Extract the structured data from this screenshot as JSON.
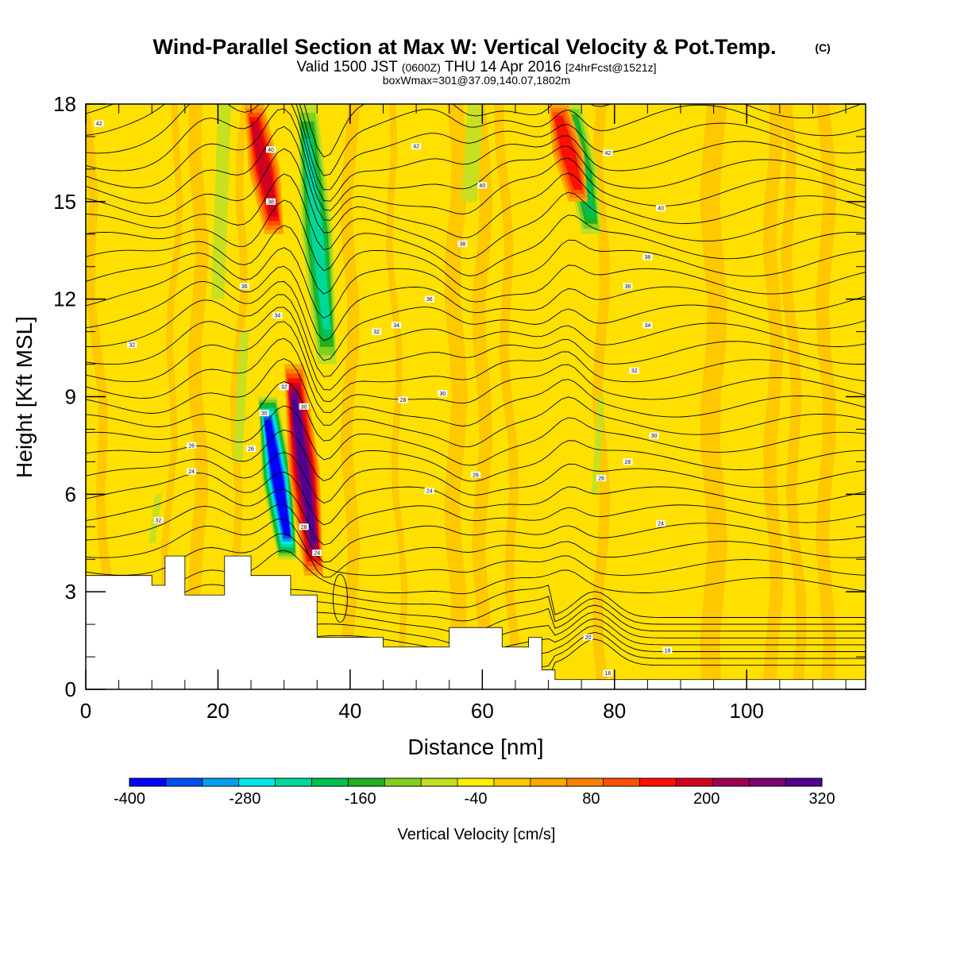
{
  "header": {
    "title": "Wind-Parallel Section at Max W: Vertical Velocity & Pot.Temp.",
    "title_mark": "(C)",
    "valid_prefix": "Valid 1500 JST",
    "valid_utc": "(0600Z)",
    "valid_date": "THU 14 Apr 2016",
    "forecast": "[24hrFcst@1521z]",
    "box_info": "boxWmax=301@37.09,140.07,1802m"
  },
  "chart_data": {
    "type": "heatmap",
    "xlabel": "Distance [nm]",
    "ylabel": "Height [Kft MSL]",
    "xlim": [
      0,
      118
    ],
    "ylim": [
      0,
      18
    ],
    "x_ticks": [
      0,
      20,
      40,
      60,
      80,
      100
    ],
    "y_ticks": [
      0,
      3,
      6,
      9,
      12,
      15,
      18
    ],
    "grid": false,
    "colorbar": {
      "label": "Vertical Velocity [cm/s]",
      "placement": "bottom",
      "min": -400,
      "max": 320,
      "step": 40,
      "tick_labels": [
        "-400",
        "-280",
        "-160",
        "-40",
        "80",
        "200",
        "320"
      ],
      "colors": [
        "#0000ff",
        "#0050f0",
        "#00a0f0",
        "#00e8e8",
        "#00d898",
        "#00c050",
        "#20b020",
        "#80d020",
        "#c0e020",
        "#ffee00",
        "#ffc800",
        "#ffa800",
        "#ff8000",
        "#ff5000",
        "#ff1000",
        "#d00020",
        "#a00050",
        "#800070",
        "#500090"
      ]
    },
    "updraft_cores": [
      {
        "x": 33,
        "z_min": 3.5,
        "z_max": 10,
        "w": 320
      },
      {
        "x": 27,
        "z_min": 14,
        "z_max": 18,
        "w": 200
      },
      {
        "x": 73,
        "z_min": 15,
        "z_max": 18,
        "w": 160
      }
    ],
    "downdraft_cores": [
      {
        "x": 29,
        "z_min": 4,
        "z_max": 9,
        "w": -400
      },
      {
        "x": 35,
        "z_min": 10,
        "z_max": 18,
        "w": -200
      },
      {
        "x": 75,
        "z_min": 14,
        "z_max": 18,
        "w": -160
      }
    ],
    "terrain_top_kft": [
      {
        "x": 0,
        "z": 3.5
      },
      {
        "x": 10,
        "z": 3.2
      },
      {
        "x": 12,
        "z": 4.1
      },
      {
        "x": 15,
        "z": 2.9
      },
      {
        "x": 21,
        "z": 4.1
      },
      {
        "x": 25,
        "z": 3.5
      },
      {
        "x": 31,
        "z": 2.9
      },
      {
        "x": 35,
        "z": 1.6
      },
      {
        "x": 45,
        "z": 1.3
      },
      {
        "x": 55,
        "z": 1.9
      },
      {
        "x": 63,
        "z": 1.3
      },
      {
        "x": 67,
        "z": 1.6
      },
      {
        "x": 69,
        "z": 0.6
      },
      {
        "x": 71,
        "z": 0.3
      },
      {
        "x": 118,
        "z": 0.3
      }
    ],
    "theta_contours": [
      {
        "label": "16",
        "x": 79,
        "z": 0.5
      },
      {
        "label": "18",
        "x": 88,
        "z": 1.2
      },
      {
        "label": "20",
        "x": 76,
        "z": 1.6
      },
      {
        "label": "24",
        "x": 35,
        "z": 4.2
      },
      {
        "label": "24",
        "x": 87,
        "z": 5.1
      },
      {
        "label": "24",
        "x": 52,
        "z": 6.1
      },
      {
        "label": "24",
        "x": 16,
        "z": 6.7
      },
      {
        "label": "26",
        "x": 16,
        "z": 7.5
      },
      {
        "label": "26",
        "x": 25,
        "z": 7.4
      },
      {
        "label": "26",
        "x": 78,
        "z": 6.5
      },
      {
        "label": "26",
        "x": 59,
        "z": 6.6
      },
      {
        "label": "28",
        "x": 82,
        "z": 7.0
      },
      {
        "label": "28",
        "x": 33,
        "z": 5.0
      },
      {
        "label": "28",
        "x": 48,
        "z": 8.9
      },
      {
        "label": "30",
        "x": 54,
        "z": 9.1
      },
      {
        "label": "30",
        "x": 86,
        "z": 7.8
      },
      {
        "label": "30",
        "x": 33,
        "z": 8.7
      },
      {
        "label": "30",
        "x": 27,
        "z": 8.5
      },
      {
        "label": "32",
        "x": 30,
        "z": 9.3
      },
      {
        "label": "32",
        "x": 7,
        "z": 10.6
      },
      {
        "label": "32",
        "x": 44,
        "z": 11.0
      },
      {
        "label": "32",
        "x": 83,
        "z": 9.8
      },
      {
        "label": "32",
        "x": 11,
        "z": 5.2
      },
      {
        "label": "34",
        "x": 29,
        "z": 11.5
      },
      {
        "label": "34",
        "x": 47,
        "z": 11.2
      },
      {
        "label": "34",
        "x": 85,
        "z": 11.2
      },
      {
        "label": "36",
        "x": 24,
        "z": 12.4
      },
      {
        "label": "36",
        "x": 52,
        "z": 12.0
      },
      {
        "label": "36",
        "x": 82,
        "z": 12.4
      },
      {
        "label": "38",
        "x": 57,
        "z": 13.7
      },
      {
        "label": "38",
        "x": 85,
        "z": 13.3
      },
      {
        "label": "38",
        "x": 28,
        "z": 15.0
      },
      {
        "label": "40",
        "x": 60,
        "z": 15.5
      },
      {
        "label": "40",
        "x": 87,
        "z": 14.8
      },
      {
        "label": "40",
        "x": 28,
        "z": 16.6
      },
      {
        "label": "42",
        "x": 50,
        "z": 16.7
      },
      {
        "label": "42",
        "x": 2,
        "z": 17.4
      },
      {
        "label": "42",
        "x": 79,
        "z": 16.5
      }
    ]
  }
}
